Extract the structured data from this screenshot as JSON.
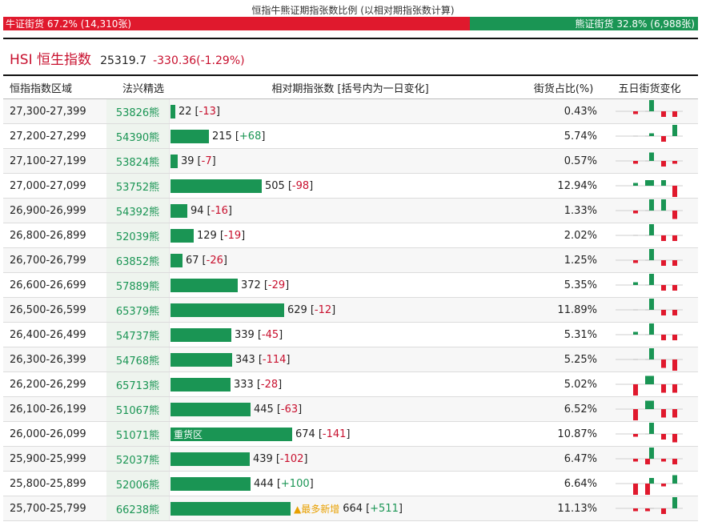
{
  "header": {
    "title": "恒指牛熊证期指张数比例 (以相对期指张数计算)",
    "bull_label": "牛证街货 67.2% (14,310张)",
    "bull_fraction": 0.672,
    "bear_label": "熊证街货 32.8% (6,988张)",
    "bear_fraction": 0.328
  },
  "index": {
    "name": "HSI 恒生指数",
    "price": "25319.7",
    "change": "-330.36(-1.29%)"
  },
  "columns": {
    "range": "恒指指数区域",
    "code": "法兴精选",
    "contracts": "相对期指张数 [括号内为一日变化]",
    "pct": "街货占比(%)",
    "five_day": "五日街货变化"
  },
  "colors": {
    "bull": "#e0192d",
    "bear": "#1a9554",
    "tag": "#e8a000"
  },
  "bar_max": 674,
  "rows": [
    {
      "range": "27,300-27,399",
      "code": "53826熊",
      "value": 22,
      "value_text": "22",
      "delta": "-13",
      "pct": "0.43%",
      "tag": "",
      "spark": [
        -1,
        0,
        4,
        -2,
        -2
      ]
    },
    {
      "range": "27,200-27,299",
      "code": "54390熊",
      "value": 215,
      "value_text": "215",
      "delta": "+68",
      "pct": "5.74%",
      "tag": "",
      "spark": [
        0,
        0,
        1,
        -2,
        4
      ]
    },
    {
      "range": "27,100-27,199",
      "code": "53824熊",
      "value": 39,
      "value_text": "39",
      "delta": "-7",
      "pct": "0.57%",
      "tag": "",
      "spark": [
        -1,
        0,
        3,
        -2,
        -1
      ]
    },
    {
      "range": "27,000-27,099",
      "code": "53752熊",
      "value": 505,
      "value_text": "505",
      "delta": "-98",
      "pct": "12.94%",
      "tag": "",
      "spark": [
        1,
        2,
        2,
        2,
        -4
      ]
    },
    {
      "range": "26,900-26,999",
      "code": "54392熊",
      "value": 94,
      "value_text": "94",
      "delta": "-16",
      "pct": "1.33%",
      "tag": "",
      "spark": [
        -1,
        0,
        4,
        4,
        -3
      ]
    },
    {
      "range": "26,800-26,899",
      "code": "52039熊",
      "value": 129,
      "value_text": "129",
      "delta": "-19",
      "pct": "2.02%",
      "tag": "",
      "spark": [
        0,
        0,
        4,
        -2,
        -2
      ]
    },
    {
      "range": "26,700-26,799",
      "code": "63852熊",
      "value": 67,
      "value_text": "67",
      "delta": "-26",
      "pct": "1.25%",
      "tag": "",
      "spark": [
        -1,
        0,
        4,
        -2,
        -2
      ]
    },
    {
      "range": "26,600-26,699",
      "code": "57889熊",
      "value": 372,
      "value_text": "372",
      "delta": "-29",
      "pct": "5.35%",
      "tag": "",
      "spark": [
        1,
        0,
        4,
        -2,
        -2
      ]
    },
    {
      "range": "26,500-26,599",
      "code": "65379熊",
      "value": 629,
      "value_text": "629",
      "delta": "-12",
      "pct": "11.89%",
      "tag": "",
      "spark": [
        0,
        0,
        4,
        -2,
        -2
      ]
    },
    {
      "range": "26,400-26,499",
      "code": "54737熊",
      "value": 339,
      "value_text": "339",
      "delta": "-45",
      "pct": "5.31%",
      "tag": "",
      "spark": [
        1,
        0,
        4,
        -2,
        -2
      ]
    },
    {
      "range": "26,300-26,399",
      "code": "54768熊",
      "value": 343,
      "value_text": "343",
      "delta": "-114",
      "pct": "5.25%",
      "tag": "",
      "spark": [
        0,
        0,
        4,
        -3,
        -4
      ]
    },
    {
      "range": "26,200-26,299",
      "code": "65713熊",
      "value": 333,
      "value_text": "333",
      "delta": "-28",
      "pct": "5.02%",
      "tag": "",
      "spark": [
        -4,
        3,
        3,
        -3,
        -3
      ]
    },
    {
      "range": "26,100-26,199",
      "code": "51067熊",
      "value": 445,
      "value_text": "445",
      "delta": "-63",
      "pct": "6.52%",
      "tag": "",
      "spark": [
        -4,
        3,
        3,
        -3,
        -3
      ]
    },
    {
      "range": "26,000-26,099",
      "code": "51071熊",
      "value": 674,
      "value_text": "674",
      "delta": "-141",
      "pct": "10.87%",
      "tag": "",
      "label": "重货区",
      "spark": [
        -1,
        0,
        4,
        -2,
        -3
      ]
    },
    {
      "range": "25,900-25,999",
      "code": "52037熊",
      "value": 439,
      "value_text": "439",
      "delta": "-102",
      "pct": "6.47%",
      "tag": "",
      "spark": [
        -1,
        -2,
        4,
        -1,
        -2
      ]
    },
    {
      "range": "25,800-25,899",
      "code": "52006熊",
      "value": 444,
      "value_text": "444",
      "delta": "+100",
      "pct": "6.64%",
      "tag": "",
      "spark": [
        -4,
        -4,
        2,
        -1,
        3
      ]
    },
    {
      "range": "25,700-25,799",
      "code": "66238熊",
      "value": 664,
      "value_text": "664",
      "delta": "+511",
      "pct": "11.13%",
      "tag": "▲最多新增",
      "spark": [
        -1,
        -1,
        0,
        -2,
        4
      ]
    }
  ]
}
